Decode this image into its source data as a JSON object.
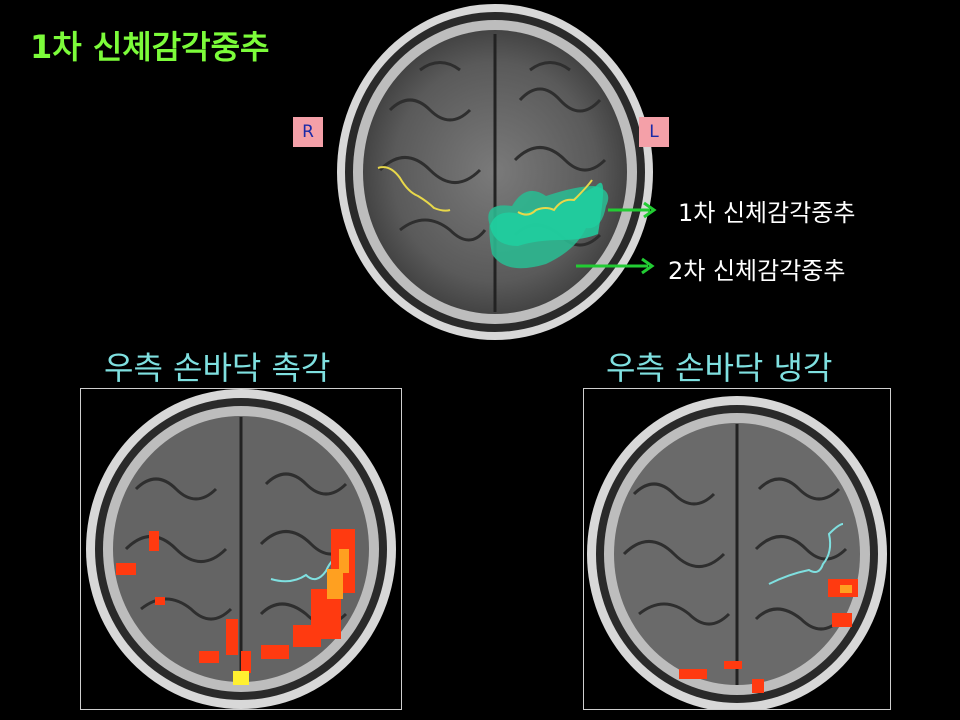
{
  "title": "1차 신체감각중추",
  "top_scan": {
    "right_marker": "R",
    "left_marker": "L",
    "callouts": {
      "primary": "1차 신체감각중추",
      "secondary": "2차 신체감각중추"
    }
  },
  "panels": {
    "left": {
      "caption": "우측 손바닥 촉각"
    },
    "right": {
      "caption": "우측 손바닥 냉각"
    }
  },
  "colors": {
    "title": "#7CFC3A",
    "caption": "#7FE0E0",
    "marker_bg": "#F4A0A8",
    "marker_text": "#1a2aa8",
    "arrow": "#22CC33",
    "secondary_region": "#2BB890",
    "sulcus_line": "#E8D84A",
    "activation": "#FF3A10"
  }
}
